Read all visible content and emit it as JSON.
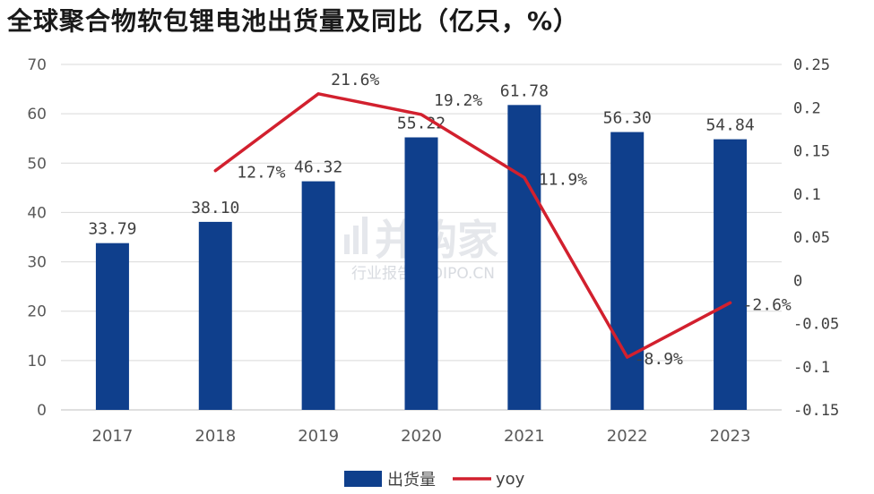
{
  "title": "全球聚合物软包锂电池出货量及同比（亿只，%）",
  "watermark": {
    "main": "并购家",
    "sub": "行业报告 IPOIPO.CN"
  },
  "chart_data": {
    "type": "bar",
    "categories": [
      "2017",
      "2018",
      "2019",
      "2020",
      "2021",
      "2022",
      "2023"
    ],
    "series": [
      {
        "name": "出货量",
        "type": "bar",
        "axis": "left",
        "color": "#0f3f8c",
        "values": [
          33.79,
          38.1,
          46.32,
          55.22,
          61.78,
          56.3,
          54.84
        ],
        "labels": [
          "33.79",
          "38.10",
          "46.32",
          "55.22",
          "61.78",
          "56.30",
          "54.84"
        ]
      },
      {
        "name": "yoy",
        "type": "line",
        "axis": "right",
        "color": "#d2202e",
        "values": [
          null,
          0.127,
          0.216,
          0.192,
          0.119,
          -0.089,
          -0.026
        ],
        "labels": [
          "",
          "12.7%",
          "21.6%",
          "19.2%",
          "11.9%",
          "-8.9%",
          "-2.6%"
        ]
      }
    ],
    "y_left": {
      "min": 0,
      "max": 70,
      "ticks": [
        "0",
        "10",
        "20",
        "30",
        "40",
        "50",
        "60",
        "70"
      ]
    },
    "y_right": {
      "min": -0.15,
      "max": 0.25,
      "ticks": [
        "-0.15",
        "-0.1",
        "-0.05",
        "0",
        "0.05",
        "0.1",
        "0.15",
        "0.2",
        "0.25"
      ]
    },
    "grid": true,
    "legend": "bottom"
  }
}
